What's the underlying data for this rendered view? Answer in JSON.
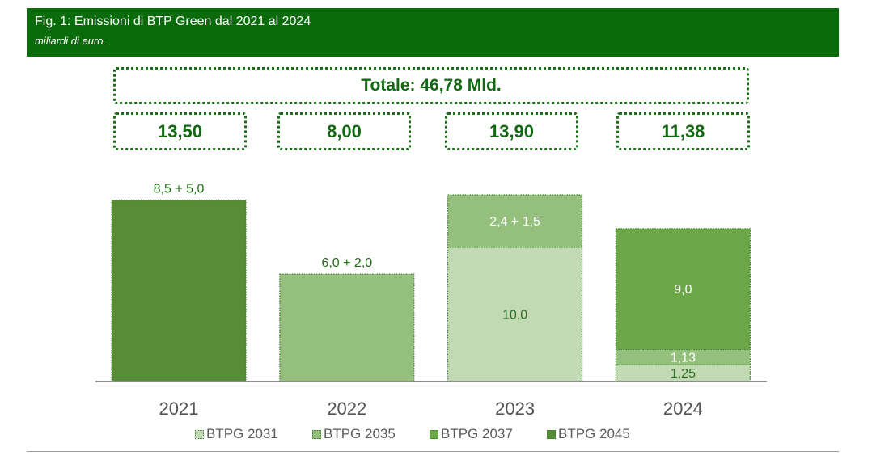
{
  "chart_data": {
    "type": "bar",
    "stacked": true,
    "title": "Fig. 1: Emissioni di BTP Green dal 2021 al 2024",
    "subtitle": "miliardi di euro.",
    "grand_total": "Totale: 46,78 Mld.",
    "totals": [
      "13,50",
      "8,00",
      "13,90",
      "11,38"
    ],
    "categories": [
      "2021",
      "2022",
      "2023",
      "2024"
    ],
    "series": [
      {
        "name": "BTPG 2031",
        "color": "#c2dab4",
        "label_color": "#2d6b1f",
        "values": [
          0,
          0,
          10.0,
          1.25
        ],
        "labels": [
          null,
          null,
          "10,0",
          "1,25"
        ]
      },
      {
        "name": "BTPG 2035",
        "color": "#94bf7c",
        "label_color": "#ffffff",
        "values": [
          0,
          8.0,
          3.9,
          1.13
        ],
        "labels": [
          null,
          "6,0 + 2,0",
          "2,4 + 1,5",
          "1,13"
        ]
      },
      {
        "name": "BTPG 2037",
        "color": "#6ba746",
        "label_color": "#ffffff",
        "values": [
          0,
          0,
          0,
          9.0
        ],
        "labels": [
          null,
          null,
          null,
          "9,0"
        ]
      },
      {
        "name": "BTPG 2045",
        "color": "#588c39",
        "label_color": "#ffffff",
        "values": [
          13.5,
          0,
          0,
          0
        ],
        "labels": [
          "8,5 + 5,0",
          null,
          null,
          null
        ]
      }
    ],
    "ylim": [
      0,
      14.2
    ],
    "grid": false,
    "legend": "bottom"
  }
}
